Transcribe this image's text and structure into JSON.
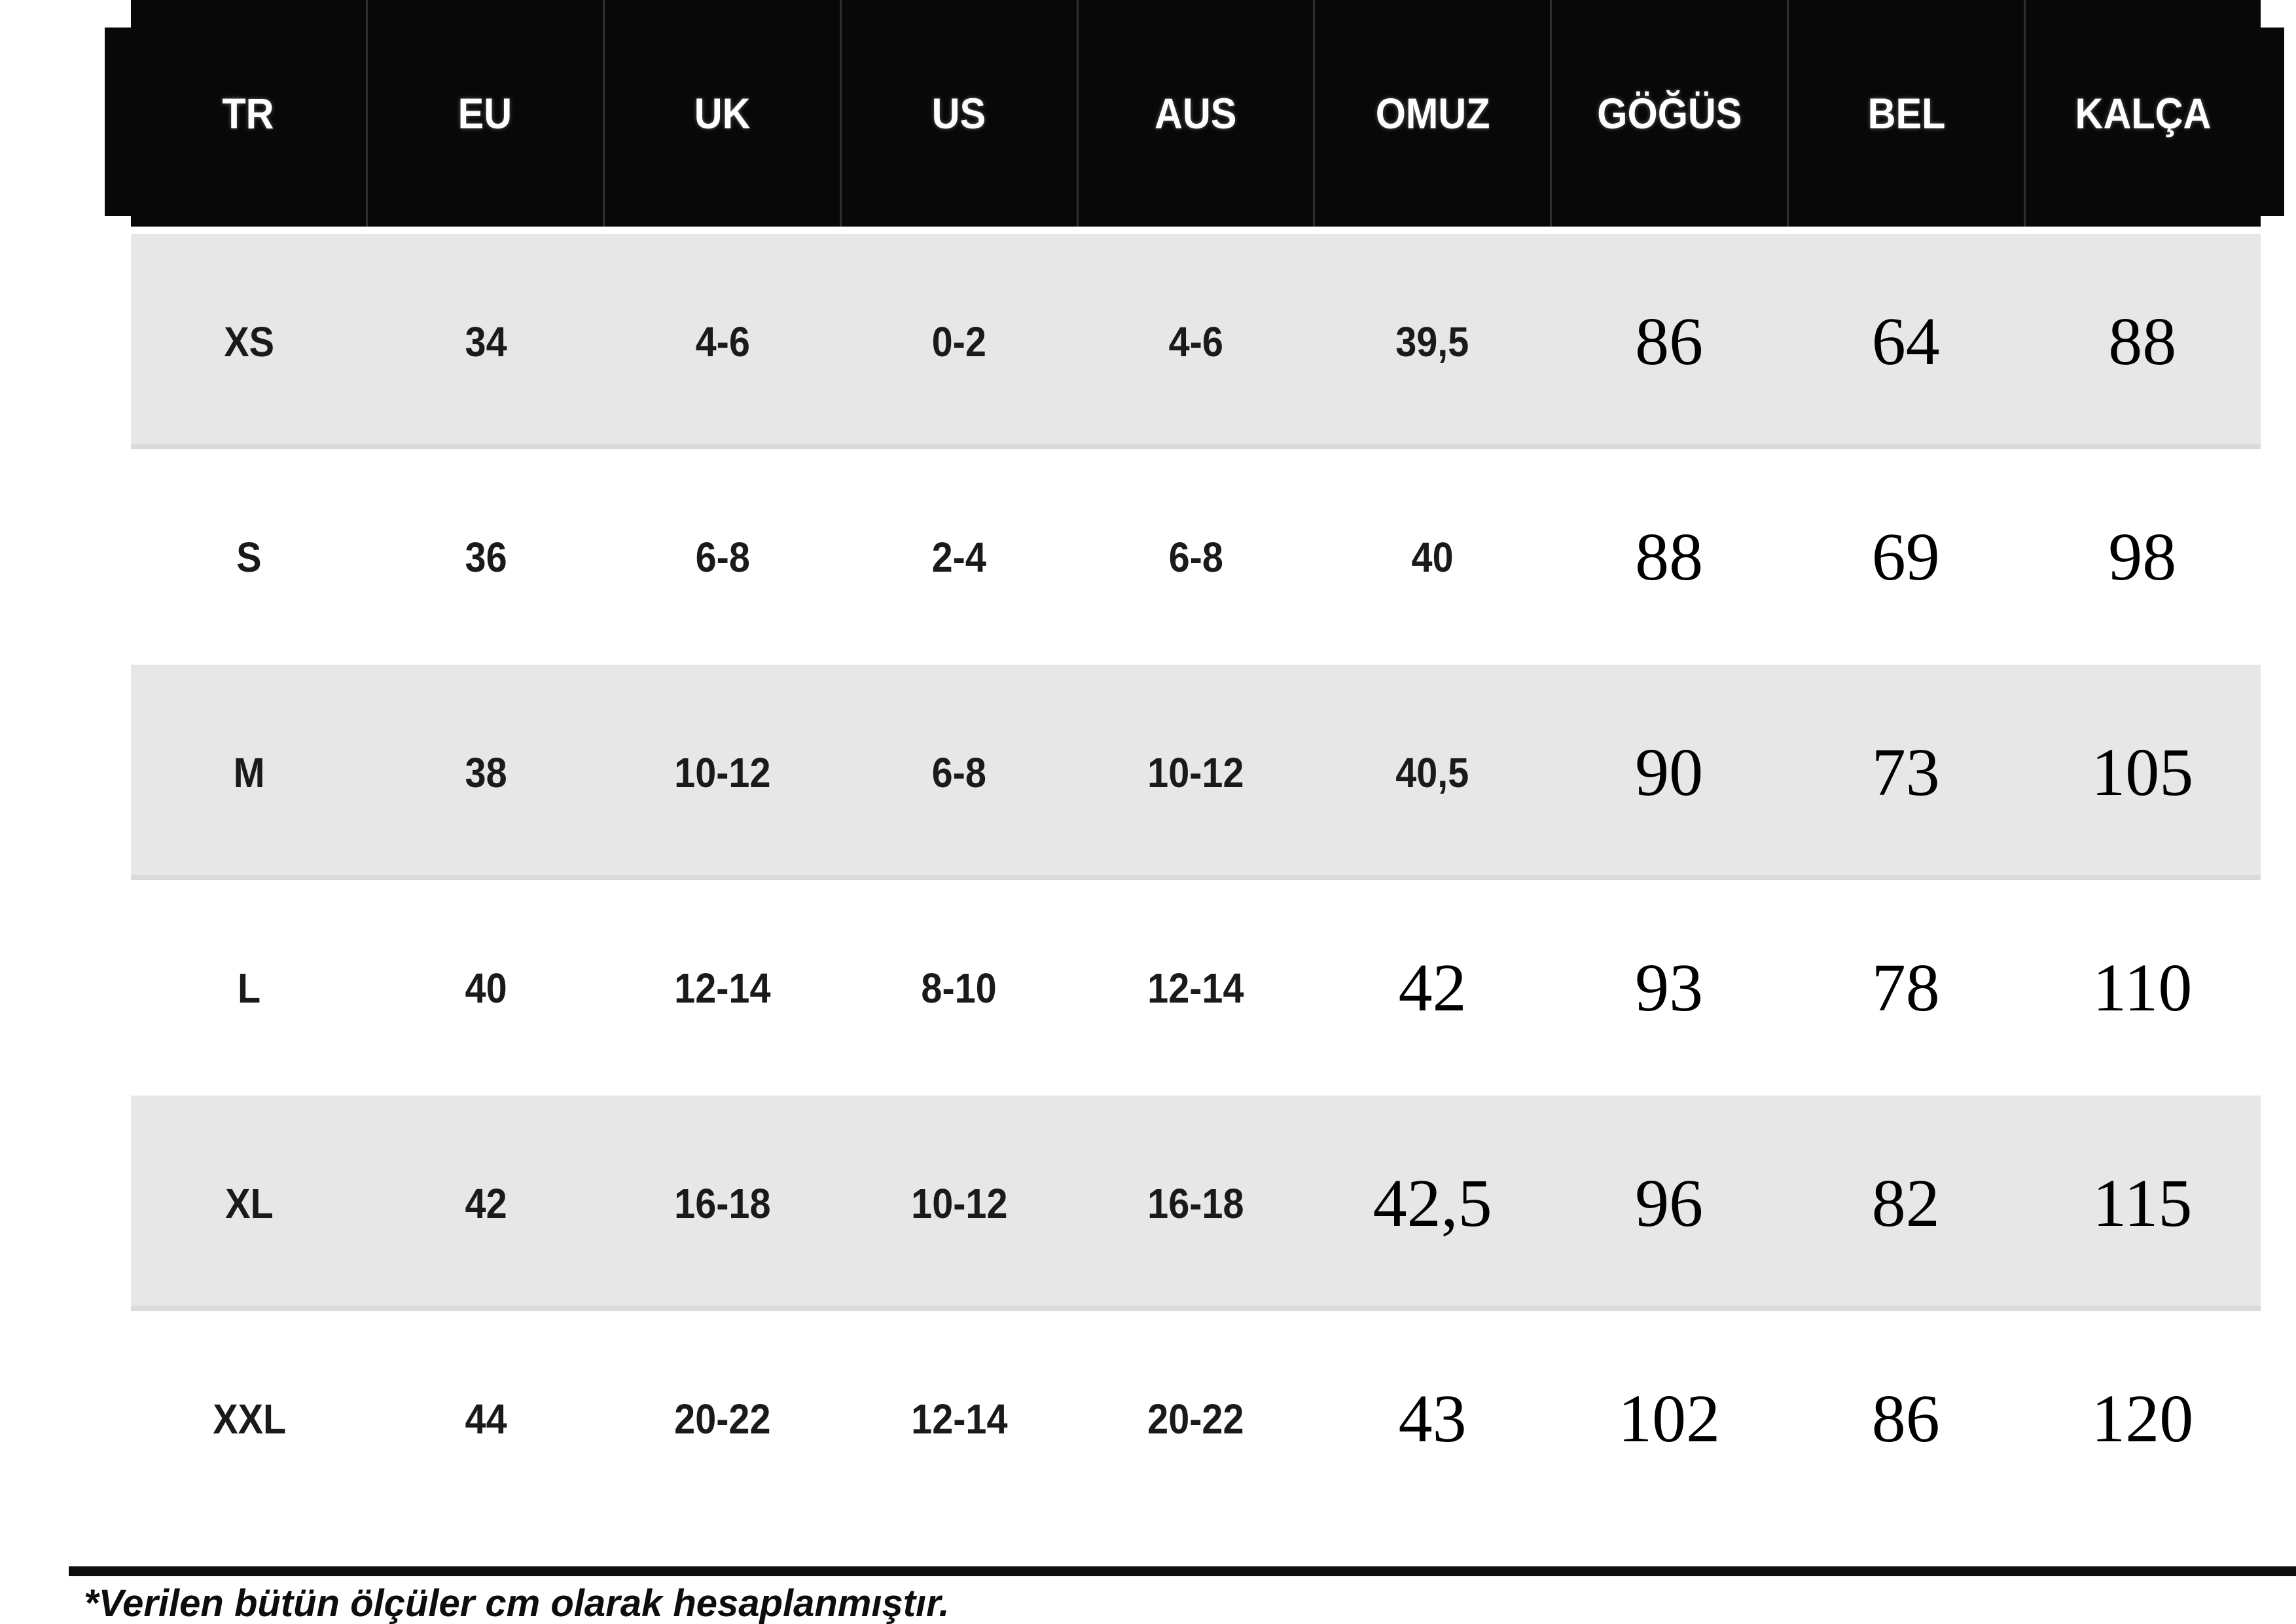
{
  "table": {
    "headers": [
      "TR",
      "EU",
      "UK",
      "US",
      "AUS",
      "OMUZ",
      "GÖĞÜS",
      "BEL",
      "KALÇA"
    ],
    "keys": [
      "tr",
      "eu",
      "uk",
      "us",
      "aus",
      "omuz",
      "gogus",
      "bel",
      "kalca"
    ],
    "rows": [
      [
        "XS",
        "34",
        "4-6",
        "0-2",
        "4-6",
        "39,5",
        "86",
        "64",
        "88"
      ],
      [
        "S",
        "36",
        "6-8",
        "2-4",
        "6-8",
        "40",
        "88",
        "69",
        "98"
      ],
      [
        "M",
        "38",
        "10-12",
        "6-8",
        "10-12",
        "40,5",
        "90",
        "73",
        "105"
      ],
      [
        "L",
        "40",
        "12-14",
        "8-10",
        "12-14",
        "42",
        "93",
        "78",
        "110"
      ],
      [
        "XL",
        "42",
        "16-18",
        "10-12",
        "16-18",
        "42,5",
        "96",
        "82",
        "115"
      ],
      [
        "XXL",
        "44",
        "20-22",
        "12-14",
        "20-22",
        "43",
        "102",
        "86",
        "120"
      ]
    ]
  },
  "footnote": "*Verilen bütün ölçüler cm olarak hesaplanmıştır.",
  "colors": {
    "header_bg": "#080808",
    "header_text": "#ffffff",
    "stripe": "#e8e7e7",
    "text": "#1a1a1a"
  }
}
